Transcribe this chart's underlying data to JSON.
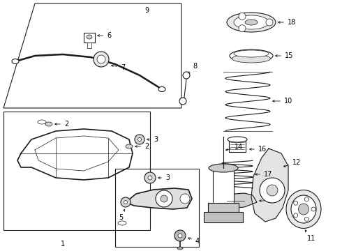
{
  "bg_color": "#ffffff",
  "line_color": "#1a1a1a",
  "fig_width": 4.9,
  "fig_height": 3.6,
  "dpi": 100,
  "label_fontsize": 7.0,
  "arrow_lw": 0.6,
  "arrow_scale": 5
}
